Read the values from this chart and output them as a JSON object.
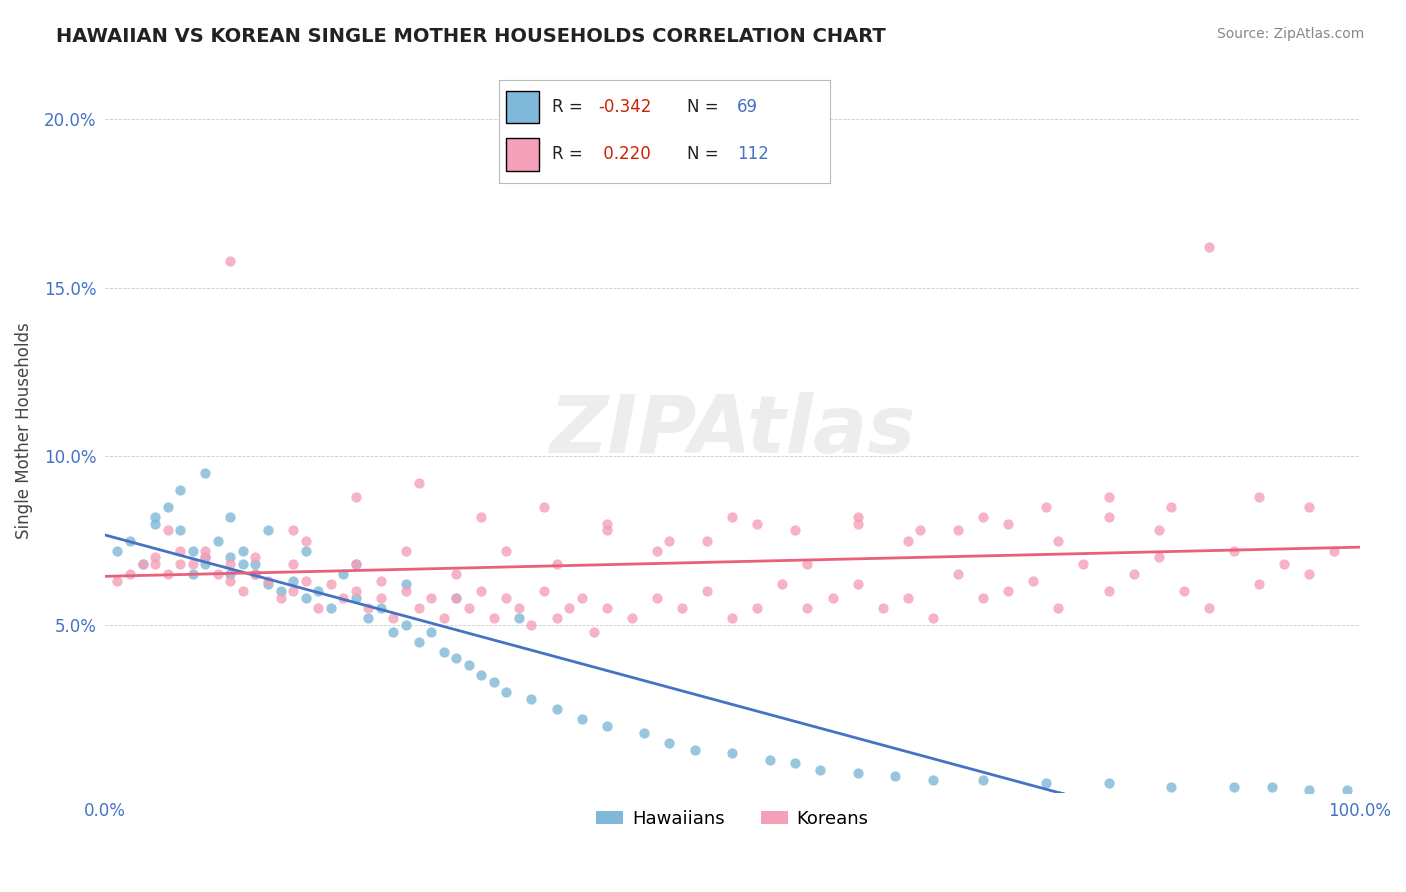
{
  "title": "HAWAIIAN VS KOREAN SINGLE MOTHER HOUSEHOLDS CORRELATION CHART",
  "source": "Source: ZipAtlas.com",
  "ylabel": "Single Mother Households",
  "xlim": [
    0,
    1
  ],
  "ylim": [
    0,
    0.215
  ],
  "xticks": [
    0.0,
    0.1,
    0.2,
    0.3,
    0.4,
    0.5,
    0.6,
    0.7,
    0.8,
    0.9,
    1.0
  ],
  "yticks": [
    0.0,
    0.05,
    0.1,
    0.15,
    0.2
  ],
  "ytick_labels": [
    "",
    "5.0%",
    "10.0%",
    "15.0%",
    "20.0%"
  ],
  "xtick_labels": [
    "0.0%",
    "",
    "",
    "",
    "",
    "",
    "",
    "",
    "",
    "",
    "100.0%"
  ],
  "color_hawaiian": "#7fb8d8",
  "color_korean": "#f4a0b8",
  "line_color_hawaiian": "#4472C4",
  "line_color_korean": "#e8607a",
  "background_color": "#ffffff",
  "grid_color": "#aaaaaa",
  "hawaiian_x": [
    0.01,
    0.02,
    0.03,
    0.04,
    0.05,
    0.06,
    0.07,
    0.07,
    0.08,
    0.08,
    0.09,
    0.1,
    0.1,
    0.11,
    0.11,
    0.12,
    0.12,
    0.13,
    0.14,
    0.15,
    0.16,
    0.17,
    0.18,
    0.19,
    0.2,
    0.21,
    0.22,
    0.23,
    0.24,
    0.25,
    0.26,
    0.27,
    0.28,
    0.29,
    0.3,
    0.31,
    0.32,
    0.34,
    0.36,
    0.38,
    0.4,
    0.43,
    0.45,
    0.47,
    0.5,
    0.53,
    0.55,
    0.57,
    0.6,
    0.63,
    0.66,
    0.7,
    0.75,
    0.8,
    0.85,
    0.9,
    0.93,
    0.96,
    0.99,
    0.04,
    0.06,
    0.08,
    0.1,
    0.13,
    0.16,
    0.2,
    0.24,
    0.28,
    0.33
  ],
  "hawaiian_y": [
    0.072,
    0.075,
    0.068,
    0.08,
    0.085,
    0.078,
    0.072,
    0.065,
    0.07,
    0.068,
    0.075,
    0.07,
    0.065,
    0.068,
    0.072,
    0.065,
    0.068,
    0.062,
    0.06,
    0.063,
    0.058,
    0.06,
    0.055,
    0.065,
    0.058,
    0.052,
    0.055,
    0.048,
    0.05,
    0.045,
    0.048,
    0.042,
    0.04,
    0.038,
    0.035,
    0.033,
    0.03,
    0.028,
    0.025,
    0.022,
    0.02,
    0.018,
    0.015,
    0.013,
    0.012,
    0.01,
    0.009,
    0.007,
    0.006,
    0.005,
    0.004,
    0.004,
    0.003,
    0.003,
    0.002,
    0.002,
    0.002,
    0.001,
    0.001,
    0.082,
    0.09,
    0.095,
    0.082,
    0.078,
    0.072,
    0.068,
    0.062,
    0.058,
    0.052
  ],
  "korean_x": [
    0.01,
    0.02,
    0.03,
    0.04,
    0.05,
    0.06,
    0.06,
    0.07,
    0.08,
    0.09,
    0.1,
    0.1,
    0.11,
    0.12,
    0.13,
    0.14,
    0.15,
    0.15,
    0.16,
    0.17,
    0.18,
    0.19,
    0.2,
    0.21,
    0.22,
    0.22,
    0.23,
    0.24,
    0.25,
    0.26,
    0.27,
    0.28,
    0.29,
    0.3,
    0.31,
    0.32,
    0.33,
    0.34,
    0.35,
    0.36,
    0.37,
    0.38,
    0.39,
    0.4,
    0.42,
    0.44,
    0.46,
    0.48,
    0.5,
    0.52,
    0.54,
    0.56,
    0.58,
    0.6,
    0.62,
    0.64,
    0.66,
    0.68,
    0.7,
    0.72,
    0.74,
    0.76,
    0.78,
    0.8,
    0.82,
    0.84,
    0.86,
    0.88,
    0.9,
    0.92,
    0.94,
    0.96,
    0.98,
    0.04,
    0.08,
    0.12,
    0.16,
    0.2,
    0.24,
    0.28,
    0.32,
    0.36,
    0.4,
    0.44,
    0.48,
    0.52,
    0.56,
    0.6,
    0.64,
    0.68,
    0.72,
    0.76,
    0.8,
    0.84,
    0.88,
    0.92,
    0.96,
    0.05,
    0.1,
    0.15,
    0.2,
    0.25,
    0.3,
    0.35,
    0.4,
    0.45,
    0.5,
    0.55,
    0.6,
    0.65,
    0.7,
    0.75,
    0.8,
    0.85
  ],
  "korean_y": [
    0.063,
    0.065,
    0.068,
    0.07,
    0.065,
    0.068,
    0.072,
    0.068,
    0.07,
    0.065,
    0.063,
    0.068,
    0.06,
    0.065,
    0.063,
    0.058,
    0.068,
    0.06,
    0.063,
    0.055,
    0.062,
    0.058,
    0.06,
    0.055,
    0.063,
    0.058,
    0.052,
    0.06,
    0.055,
    0.058,
    0.052,
    0.058,
    0.055,
    0.06,
    0.052,
    0.058,
    0.055,
    0.05,
    0.06,
    0.052,
    0.055,
    0.058,
    0.048,
    0.055,
    0.052,
    0.058,
    0.055,
    0.06,
    0.052,
    0.055,
    0.062,
    0.055,
    0.058,
    0.062,
    0.055,
    0.058,
    0.052,
    0.065,
    0.058,
    0.06,
    0.063,
    0.055,
    0.068,
    0.06,
    0.065,
    0.07,
    0.06,
    0.055,
    0.072,
    0.062,
    0.068,
    0.065,
    0.072,
    0.068,
    0.072,
    0.07,
    0.075,
    0.068,
    0.072,
    0.065,
    0.072,
    0.068,
    0.078,
    0.072,
    0.075,
    0.08,
    0.068,
    0.082,
    0.075,
    0.078,
    0.08,
    0.075,
    0.082,
    0.078,
    0.162,
    0.088,
    0.085,
    0.078,
    0.158,
    0.078,
    0.088,
    0.092,
    0.082,
    0.085,
    0.08,
    0.075,
    0.082,
    0.078,
    0.08,
    0.078,
    0.082,
    0.085,
    0.088,
    0.085
  ]
}
